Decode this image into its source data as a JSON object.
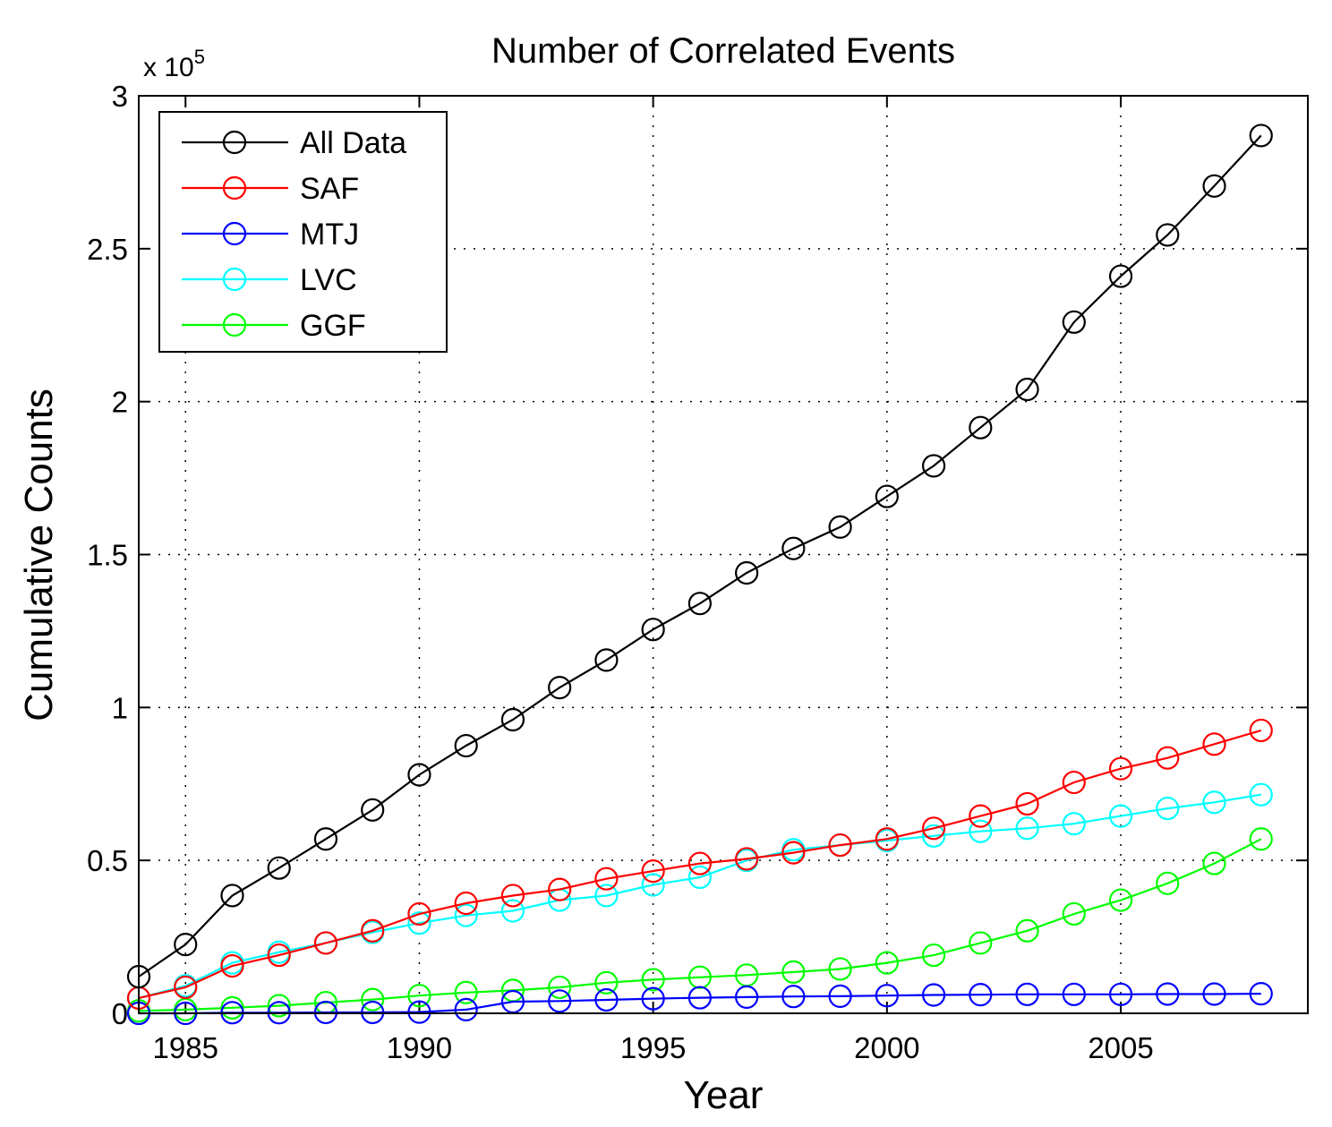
{
  "chart_data": {
    "type": "line",
    "title": "Number of Correlated Events",
    "xlabel": "Year",
    "ylabel": "Cumulative Counts",
    "y_multiplier_base": "x 10",
    "y_multiplier_exponent": "5",
    "xlim": [
      1984,
      2009
    ],
    "ylim": [
      0,
      3
    ],
    "x_ticks": [
      1985,
      1990,
      1995,
      2000,
      2005
    ],
    "y_ticks": [
      0,
      0.5,
      1,
      1.5,
      2,
      2.5,
      3
    ],
    "y_tick_labels": [
      "0",
      "0.5",
      "1",
      "1.5",
      "2",
      "2.5",
      "3"
    ],
    "grid": true,
    "grid_style": "dotted",
    "legend_position": "top-left",
    "marker": "open-circle",
    "x": [
      1984,
      1985,
      1986,
      1987,
      1988,
      1989,
      1990,
      1991,
      1992,
      1993,
      1994,
      1995,
      1996,
      1997,
      1998,
      1999,
      2000,
      2001,
      2002,
      2003,
      2004,
      2005,
      2006,
      2007,
      2008
    ],
    "series": [
      {
        "name": "All Data",
        "color": "#000000",
        "values": [
          0.12,
          0.225,
          0.385,
          0.475,
          0.57,
          0.665,
          0.78,
          0.875,
          0.96,
          1.065,
          1.155,
          1.255,
          1.34,
          1.44,
          1.52,
          1.59,
          1.69,
          1.79,
          1.915,
          2.04,
          2.26,
          2.41,
          2.545,
          2.705,
          2.87
        ]
      },
      {
        "name": "SAF",
        "color": "#ff0000",
        "values": [
          0.05,
          0.085,
          0.155,
          0.19,
          0.23,
          0.27,
          0.325,
          0.36,
          0.385,
          0.405,
          0.44,
          0.465,
          0.49,
          0.505,
          0.525,
          0.55,
          0.57,
          0.605,
          0.645,
          0.685,
          0.755,
          0.8,
          0.835,
          0.88,
          0.925
        ]
      },
      {
        "name": "MTJ",
        "color": "#0000ff",
        "values": [
          0.0,
          0.0,
          0.002,
          0.002,
          0.003,
          0.003,
          0.004,
          0.012,
          0.038,
          0.04,
          0.044,
          0.048,
          0.051,
          0.053,
          0.055,
          0.056,
          0.058,
          0.06,
          0.061,
          0.062,
          0.062,
          0.062,
          0.063,
          0.063,
          0.064
        ]
      },
      {
        "name": "LVC",
        "color": "#00ffff",
        "values": [
          0.05,
          0.09,
          0.165,
          0.2,
          0.23,
          0.265,
          0.295,
          0.32,
          0.335,
          0.37,
          0.385,
          0.42,
          0.445,
          0.5,
          0.535,
          0.55,
          0.565,
          0.58,
          0.595,
          0.605,
          0.62,
          0.645,
          0.67,
          0.69,
          0.715
        ]
      },
      {
        "name": "GGF",
        "color": "#00ff00",
        "values": [
          0.008,
          0.012,
          0.018,
          0.025,
          0.035,
          0.045,
          0.058,
          0.068,
          0.075,
          0.085,
          0.1,
          0.11,
          0.118,
          0.125,
          0.135,
          0.145,
          0.165,
          0.19,
          0.23,
          0.27,
          0.325,
          0.37,
          0.425,
          0.49,
          0.57
        ]
      }
    ]
  }
}
